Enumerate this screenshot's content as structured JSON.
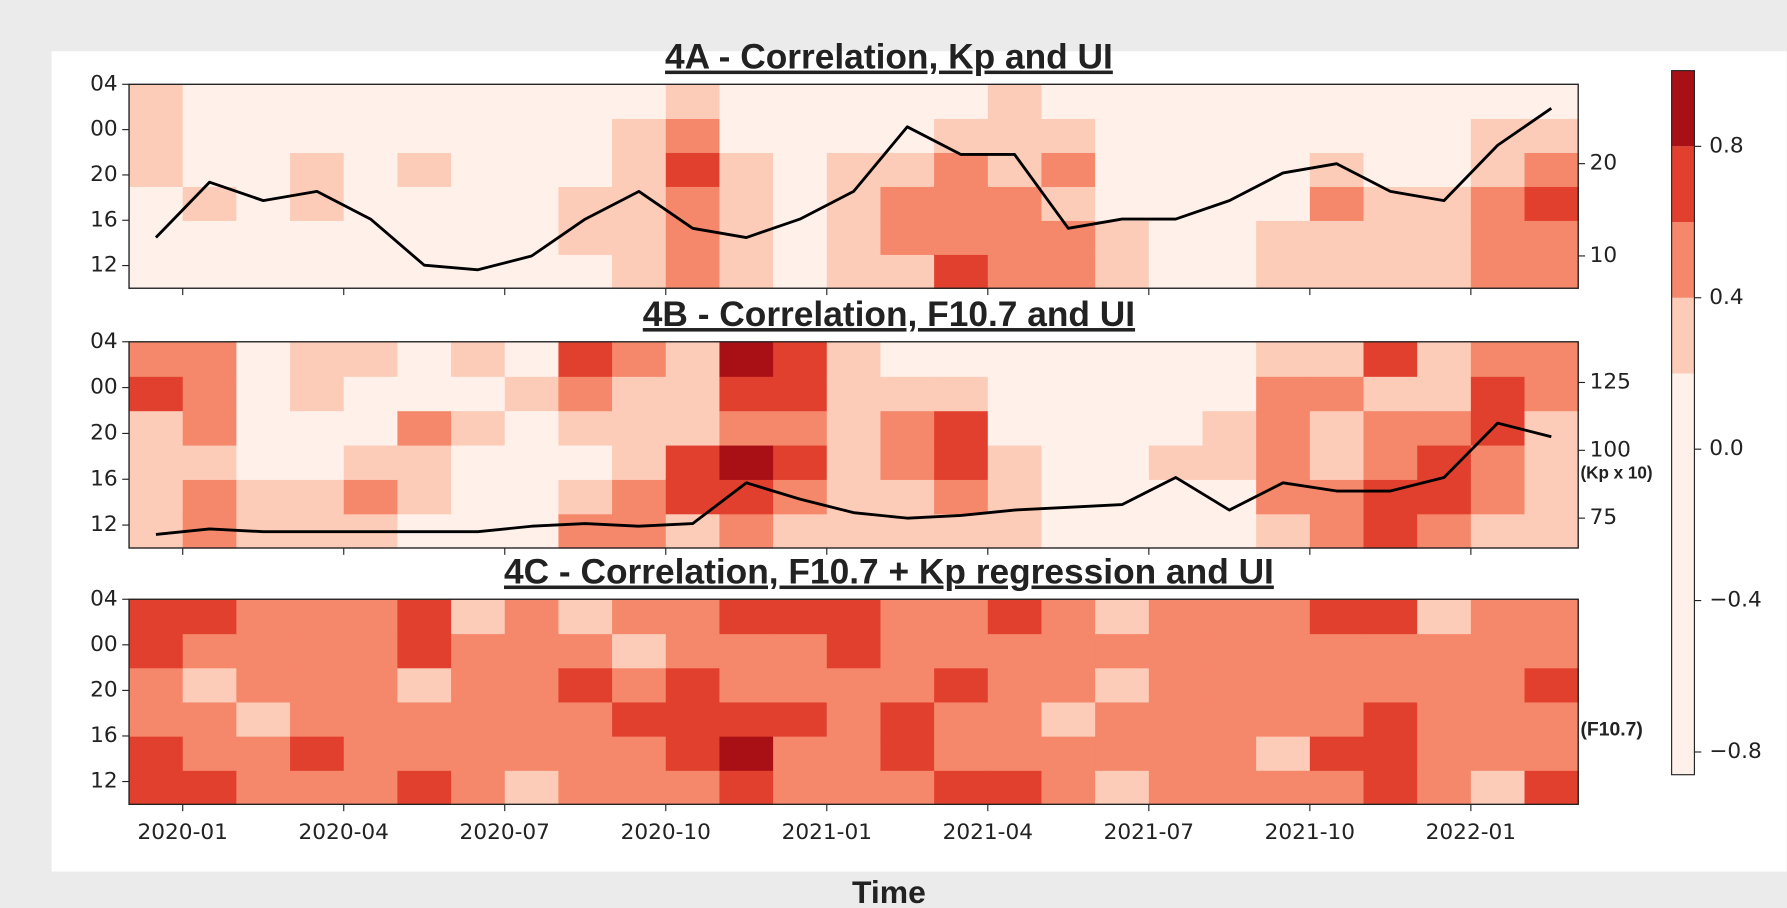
{
  "chart_data": [
    {
      "type": "heatmap",
      "title": "4A - Correlation, Kp and UI",
      "x": [
        "2019-12",
        "2020-01",
        "2020-02",
        "2020-03",
        "2020-04",
        "2020-05",
        "2020-06",
        "2020-07",
        "2020-08",
        "2020-09",
        "2020-10",
        "2020-11",
        "2020-12",
        "2021-01",
        "2021-02",
        "2021-03",
        "2021-04",
        "2021-05",
        "2021-06",
        "2021-07",
        "2021-08",
        "2021-09",
        "2021-10",
        "2021-11",
        "2021-12",
        "2022-01",
        "2022-02"
      ],
      "y": [
        11.5,
        14.5,
        17.5,
        20.5,
        23.5,
        26.5
      ],
      "z": [
        [
          0.1,
          0.1,
          0.1,
          0.2,
          0.3,
          0.3
        ],
        [
          0.1,
          0.1,
          0.2,
          0.1,
          0.1,
          0.1
        ],
        [
          0.1,
          0.1,
          0.1,
          0.1,
          0.1,
          0.1
        ],
        [
          0.1,
          0.1,
          0.2,
          0.2,
          0.1,
          0.1
        ],
        [
          0.1,
          0.1,
          0.1,
          0.1,
          0.1,
          0.1
        ],
        [
          0.1,
          0.1,
          0.1,
          0.2,
          0.1,
          0.1
        ],
        [
          0.1,
          0.1,
          0.1,
          0.1,
          0.1,
          0.1
        ],
        [
          0.1,
          0.1,
          0.1,
          0.1,
          0.1,
          0.1
        ],
        [
          0.1,
          0.2,
          0.2,
          0.1,
          0.1,
          0.1
        ],
        [
          0.2,
          0.3,
          0.3,
          0.2,
          0.2,
          0.1
        ],
        [
          0.5,
          0.4,
          0.4,
          0.6,
          0.5,
          0.3
        ],
        [
          0.2,
          0.2,
          0.2,
          0.2,
          0.1,
          0.1
        ],
        [
          0.1,
          0.1,
          0.1,
          0.1,
          0.1,
          0.1
        ],
        [
          0.3,
          0.3,
          0.3,
          0.2,
          0.1,
          0.1
        ],
        [
          0.3,
          0.4,
          0.5,
          0.3,
          0.1,
          0.1
        ],
        [
          0.6,
          0.5,
          0.5,
          0.4,
          0.2,
          0.1
        ],
        [
          0.5,
          0.4,
          0.4,
          0.3,
          0.2,
          0.2
        ],
        [
          0.4,
          0.4,
          0.3,
          0.4,
          0.2,
          0.1
        ],
        [
          0.2,
          0.2,
          0.1,
          0.1,
          0.1,
          0.1
        ],
        [
          0.1,
          0.1,
          0.1,
          0.1,
          0.1,
          0.1
        ],
        [
          0.1,
          0.1,
          0.1,
          0.1,
          0.1,
          0.1
        ],
        [
          0.2,
          0.2,
          0.1,
          0.1,
          0.1,
          0.1
        ],
        [
          0.3,
          0.3,
          0.4,
          0.2,
          0.1,
          0.1
        ],
        [
          0.2,
          0.2,
          0.2,
          0.1,
          0.1,
          0.1
        ],
        [
          0.2,
          0.3,
          0.2,
          0.1,
          0.1,
          0.1
        ],
        [
          0.5,
          0.4,
          0.4,
          0.3,
          0.2,
          0.1
        ],
        [
          0.5,
          0.5,
          0.6,
          0.4,
          0.2,
          0.1
        ]
      ],
      "line_values": [
        12,
        18,
        16,
        17,
        14,
        9,
        8.5,
        10,
        14,
        17,
        13,
        12,
        14,
        17,
        24,
        21,
        21,
        13,
        14,
        14,
        16,
        19,
        20,
        17,
        16,
        22,
        26
      ],
      "line_color": "#000000",
      "xlim": [
        "2019-12",
        "2022-03"
      ],
      "ylim": [
        10,
        28
      ],
      "yticks": [
        12,
        16,
        20,
        {
          "value": 24,
          "label": "00"
        },
        {
          "value": 28,
          "label": "04"
        }
      ],
      "y2lim": [
        6.5,
        28.6
      ],
      "y2ticks": [
        10,
        20
      ]
    },
    {
      "type": "heatmap",
      "title": "4B - Correlation, F10.7 and UI",
      "x": [
        "2019-12",
        "2020-01",
        "2020-02",
        "2020-03",
        "2020-04",
        "2020-05",
        "2020-06",
        "2020-07",
        "2020-08",
        "2020-09",
        "2020-10",
        "2020-11",
        "2020-12",
        "2021-01",
        "2021-02",
        "2021-03",
        "2021-04",
        "2021-05",
        "2021-06",
        "2021-07",
        "2021-08",
        "2021-09",
        "2021-10",
        "2021-11",
        "2021-12",
        "2022-01",
        "2022-02"
      ],
      "y": [
        11.5,
        14.5,
        17.5,
        20.5,
        23.5,
        26.5
      ],
      "z": [
        [
          0.3,
          0.2,
          0.2,
          0.3,
          0.6,
          0.5
        ],
        [
          0.5,
          0.4,
          0.3,
          0.4,
          0.5,
          0.4
        ],
        [
          0.2,
          0.2,
          0.1,
          0.1,
          0.1,
          0.1
        ],
        [
          0.2,
          0.2,
          0.1,
          0.1,
          0.2,
          0.2
        ],
        [
          0.2,
          0.5,
          0.2,
          0.1,
          0.1,
          0.2
        ],
        [
          0.1,
          0.2,
          0.2,
          0.5,
          0.1,
          0.1
        ],
        [
          0.1,
          0.1,
          0.1,
          0.2,
          0.1,
          0.2
        ],
        [
          0.1,
          0.1,
          0.1,
          0.1,
          0.2,
          0.1
        ],
        [
          0.4,
          0.3,
          0.1,
          0.3,
          0.5,
          0.6
        ],
        [
          0.5,
          0.4,
          0.2,
          0.2,
          0.3,
          0.4
        ],
        [
          0.3,
          0.6,
          0.7,
          0.3,
          0.2,
          0.2
        ],
        [
          0.4,
          0.7,
          0.8,
          0.5,
          0.6,
          0.8
        ],
        [
          0.3,
          0.5,
          0.6,
          0.4,
          0.6,
          0.7
        ],
        [
          0.2,
          0.3,
          0.3,
          0.2,
          0.2,
          0.2
        ],
        [
          0.2,
          0.3,
          0.5,
          0.4,
          0.2,
          0.1
        ],
        [
          0.3,
          0.5,
          0.6,
          0.7,
          0.2,
          0.1
        ],
        [
          0.2,
          0.2,
          0.2,
          0.1,
          0.1,
          0.1
        ],
        [
          0.1,
          0.1,
          0.1,
          0.1,
          0.1,
          0.1
        ],
        [
          0.1,
          0.1,
          0.1,
          0.1,
          0.1,
          0.1
        ],
        [
          0.1,
          0.1,
          0.2,
          0.1,
          0.1,
          0.1
        ],
        [
          0.1,
          0.1,
          0.2,
          0.2,
          0.1,
          0.1
        ],
        [
          0.3,
          0.4,
          0.5,
          0.5,
          0.4,
          0.2
        ],
        [
          0.4,
          0.5,
          0.3,
          0.3,
          0.4,
          0.2
        ],
        [
          0.7,
          0.6,
          0.5,
          0.4,
          0.3,
          0.6
        ],
        [
          0.4,
          0.6,
          0.6,
          0.5,
          0.3,
          0.2
        ],
        [
          0.3,
          0.4,
          0.5,
          0.7,
          0.6,
          0.4
        ],
        [
          0.3,
          0.3,
          0.2,
          0.3,
          0.4,
          0.5
        ]
      ],
      "line_values": [
        69,
        71,
        70,
        70,
        70,
        70,
        70,
        72,
        73,
        72,
        73,
        88,
        82,
        77,
        75,
        76,
        78,
        79,
        80,
        90,
        78,
        88,
        85,
        85,
        90,
        110,
        105
      ],
      "line_color": "#000000",
      "xlim": [
        "2019-12",
        "2022-03"
      ],
      "ylim": [
        10,
        28
      ],
      "yticks": [
        12,
        16,
        20,
        {
          "value": 24,
          "label": "00"
        },
        {
          "value": 28,
          "label": "04"
        }
      ],
      "y2lim": [
        64,
        140
      ],
      "y2ticks": [
        75,
        100,
        125
      ],
      "annotation": "(Kp x 10)"
    },
    {
      "type": "heatmap",
      "title": "4C - Correlation, F10.7 + Kp regression and UI",
      "x": [
        "2019-12",
        "2020-01",
        "2020-02",
        "2020-03",
        "2020-04",
        "2020-05",
        "2020-06",
        "2020-07",
        "2020-08",
        "2020-09",
        "2020-10",
        "2020-11",
        "2020-12",
        "2021-01",
        "2021-02",
        "2021-03",
        "2021-04",
        "2021-05",
        "2021-06",
        "2021-07",
        "2021-08",
        "2021-09",
        "2021-10",
        "2021-11",
        "2021-12",
        "2022-01",
        "2022-02"
      ],
      "y": [
        11.5,
        14.5,
        17.5,
        20.5,
        23.5,
        26.5
      ],
      "z": [
        [
          0.6,
          0.6,
          0.5,
          0.4,
          0.6,
          0.6
        ],
        [
          0.7,
          0.5,
          0.4,
          0.3,
          0.5,
          0.6
        ],
        [
          0.4,
          0.5,
          0.3,
          0.5,
          0.4,
          0.4
        ],
        [
          0.5,
          0.6,
          0.5,
          0.4,
          0.4,
          0.5
        ],
        [
          0.4,
          0.5,
          0.4,
          0.5,
          0.5,
          0.4
        ],
        [
          0.7,
          0.5,
          0.4,
          0.3,
          0.6,
          0.6
        ],
        [
          0.4,
          0.4,
          0.5,
          0.5,
          0.4,
          0.3
        ],
        [
          0.3,
          0.4,
          0.4,
          0.4,
          0.5,
          0.5
        ],
        [
          0.5,
          0.5,
          0.4,
          0.6,
          0.4,
          0.3
        ],
        [
          0.4,
          0.5,
          0.6,
          0.5,
          0.3,
          0.4
        ],
        [
          0.5,
          0.6,
          0.7,
          0.7,
          0.5,
          0.5
        ],
        [
          0.6,
          0.8,
          0.6,
          0.5,
          0.4,
          0.6
        ],
        [
          0.5,
          0.5,
          0.6,
          0.4,
          0.5,
          0.7
        ],
        [
          0.4,
          0.5,
          0.4,
          0.5,
          0.6,
          0.7
        ],
        [
          0.5,
          0.6,
          0.6,
          0.4,
          0.5,
          0.5
        ],
        [
          0.6,
          0.5,
          0.5,
          0.6,
          0.4,
          0.4
        ],
        [
          0.6,
          0.5,
          0.4,
          0.5,
          0.5,
          0.6
        ],
        [
          0.4,
          0.4,
          0.3,
          0.4,
          0.5,
          0.4
        ],
        [
          0.3,
          0.4,
          0.4,
          0.3,
          0.4,
          0.3
        ],
        [
          0.4,
          0.4,
          0.5,
          0.5,
          0.4,
          0.4
        ],
        [
          0.5,
          0.4,
          0.5,
          0.4,
          0.5,
          0.5
        ],
        [
          0.4,
          0.3,
          0.4,
          0.5,
          0.4,
          0.4
        ],
        [
          0.5,
          0.6,
          0.5,
          0.4,
          0.5,
          0.6
        ],
        [
          0.6,
          0.7,
          0.6,
          0.5,
          0.5,
          0.6
        ],
        [
          0.5,
          0.5,
          0.4,
          0.5,
          0.4,
          0.3
        ],
        [
          0.3,
          0.4,
          0.5,
          0.5,
          0.5,
          0.4
        ],
        [
          0.6,
          0.5,
          0.5,
          0.6,
          0.4,
          0.5
        ]
      ],
      "xlim": [
        "2019-12",
        "2022-03"
      ],
      "ylim": [
        10,
        28
      ],
      "xticks": [
        "2020-01",
        "2020-04",
        "2020-07",
        "2020-10",
        "2021-01",
        "2021-04",
        "2021-07",
        "2021-10",
        "2022-01"
      ],
      "yticks": [
        12,
        16,
        20,
        {
          "value": 24,
          "label": "00"
        },
        {
          "value": 28,
          "label": "04"
        }
      ],
      "xlabel": "Time",
      "annotation": "(F10.7)"
    },
    {
      "type": "colorbar",
      "clim": [
        -0.86,
        1.0
      ],
      "levels": [
        0.2,
        0.4,
        0.6,
        0.8
      ],
      "colors": [
        "#fff1ea",
        "#fcccb8",
        "#f5876a",
        "#e2402f",
        "#a91016"
      ],
      "ticks": [
        {
          "value": -0.8,
          "label": "−0.8"
        },
        {
          "value": -0.4,
          "label": "−0.4"
        },
        {
          "value": 0,
          "label": "0.0"
        },
        0.4,
        0.8
      ]
    }
  ]
}
